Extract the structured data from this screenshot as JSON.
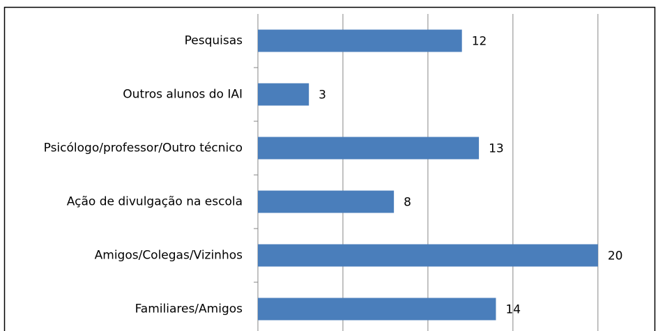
{
  "chart_data": {
    "type": "bar",
    "orientation": "horizontal",
    "categories": [
      "Pesquisas",
      "Outros alunos do IAI",
      "Psicólogo/professor/Outro técnico",
      "Ação de divulgação na escola",
      "Amigos/Colegas/Vizinhos",
      "Familiares/Amigos"
    ],
    "values": [
      12,
      3,
      13,
      8,
      20,
      14
    ],
    "color": "#4a7ebb",
    "xlim": [
      0,
      23
    ],
    "xticks": [
      0,
      5,
      10,
      15,
      20
    ],
    "grid": true
  }
}
